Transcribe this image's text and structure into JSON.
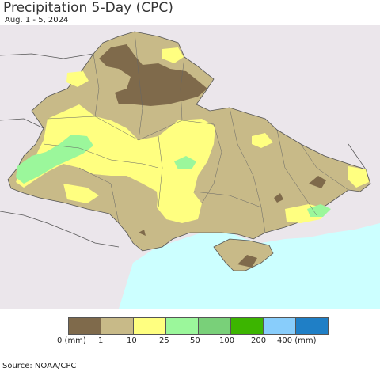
{
  "header": {
    "title": "Precipitation 5-Day (CPC)",
    "date_range": "Aug. 1 - 5, 2024"
  },
  "legend": {
    "unit_prefix": "0 (mm)",
    "unit_suffix": "400 (mm)",
    "classes": [
      {
        "color": "#7f6a4b",
        "label": "0 (mm)"
      },
      {
        "color": "#c8ba88",
        "label": "1"
      },
      {
        "color": "#ffff80",
        "label": "10"
      },
      {
        "color": "#9bf79b",
        "label": "25"
      },
      {
        "color": "#79d079",
        "label": "50"
      },
      {
        "color": "#3cb500",
        "label": "100"
      },
      {
        "color": "#88cdfb",
        "label": "200"
      },
      {
        "color": "#1f7fc6",
        "label": "400 (mm)"
      }
    ]
  },
  "map": {
    "background_land": "#ebe6eb",
    "sea_color": "#ccffff",
    "base_color": "#c8ba88"
  },
  "footer": {
    "source": "Source: NOAA/CPC"
  }
}
